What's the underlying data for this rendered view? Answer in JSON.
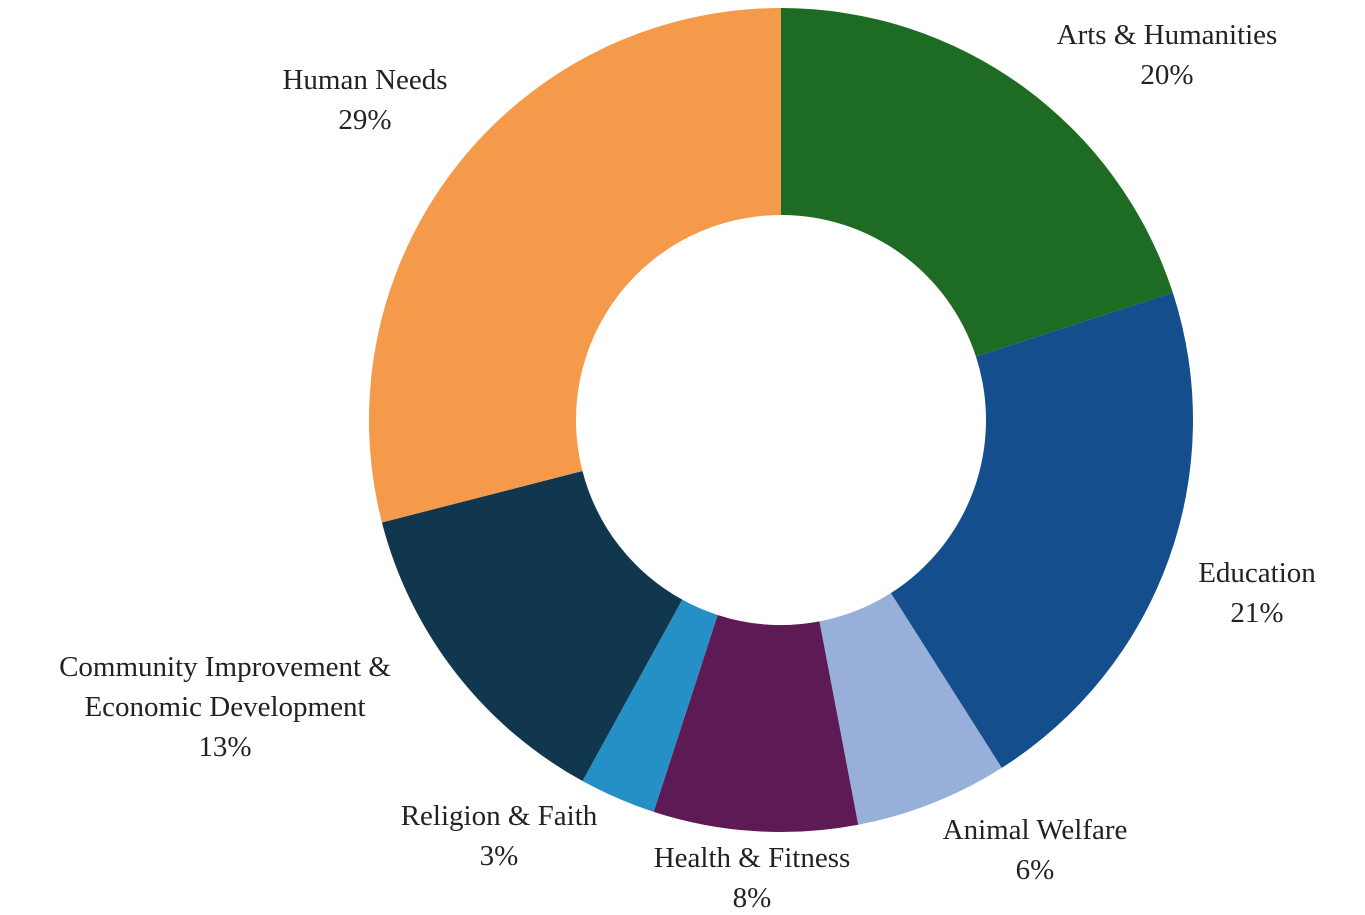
{
  "chart_data": {
    "type": "donut",
    "categories": [
      "Arts & Humanities",
      "Education",
      "Animal Welfare",
      "Health & Fitness",
      "Religion & Faith",
      "Community Improvement & Economic Development",
      "Human Needs"
    ],
    "values": [
      20,
      21,
      6,
      8,
      3,
      13,
      29
    ],
    "value_labels": [
      "20%",
      "21%",
      "6%",
      "8%",
      "3%",
      "13%",
      "29%"
    ],
    "colors": [
      "#1e6b24",
      "#144e8c",
      "#98b0d9",
      "#5e1a55",
      "#2590c6",
      "#10374e",
      "#f59a4a"
    ]
  }
}
